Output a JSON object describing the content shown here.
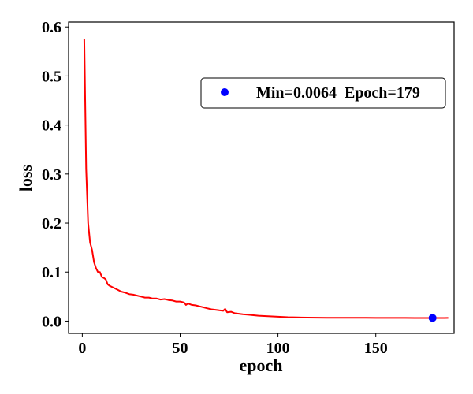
{
  "chart_data": {
    "type": "line",
    "xlabel": "epoch",
    "ylabel": "loss",
    "xlim": [
      -7,
      190
    ],
    "ylim": [
      -0.025,
      0.61
    ],
    "xticks": [
      0,
      50,
      100,
      150
    ],
    "yticks": [
      0.0,
      0.1,
      0.2,
      0.3,
      0.4,
      0.5,
      0.6
    ],
    "xtick_labels": [
      "0",
      "50",
      "100",
      "150"
    ],
    "ytick_labels": [
      "0.0",
      "0.1",
      "0.2",
      "0.3",
      "0.4",
      "0.5",
      "0.6"
    ],
    "grid": false,
    "legend_position": "upper-right",
    "series": [
      {
        "color": "#ff0000",
        "x": [
          1,
          2,
          3,
          4,
          5,
          6,
          7,
          8,
          9,
          10,
          11,
          12,
          13,
          14,
          15,
          16,
          17,
          18,
          19,
          20,
          22,
          24,
          26,
          28,
          30,
          32,
          34,
          36,
          38,
          40,
          42,
          44,
          46,
          48,
          50,
          52,
          53,
          54,
          56,
          58,
          60,
          62,
          64,
          66,
          68,
          70,
          72,
          73,
          74,
          76,
          78,
          80,
          82,
          85,
          90,
          95,
          100,
          105,
          110,
          115,
          120,
          125,
          130,
          135,
          140,
          145,
          150,
          155,
          160,
          165,
          170,
          175,
          180,
          185,
          187
        ],
        "y": [
          0.575,
          0.31,
          0.2,
          0.16,
          0.145,
          0.12,
          0.108,
          0.1,
          0.1,
          0.09,
          0.088,
          0.085,
          0.075,
          0.072,
          0.07,
          0.068,
          0.066,
          0.064,
          0.062,
          0.06,
          0.058,
          0.055,
          0.054,
          0.052,
          0.05,
          0.048,
          0.048,
          0.046,
          0.046,
          0.044,
          0.045,
          0.043,
          0.042,
          0.04,
          0.04,
          0.038,
          0.033,
          0.036,
          0.033,
          0.032,
          0.03,
          0.028,
          0.026,
          0.024,
          0.023,
          0.022,
          0.021,
          0.025,
          0.018,
          0.019,
          0.016,
          0.015,
          0.014,
          0.013,
          0.011,
          0.01,
          0.009,
          0.008,
          0.0075,
          0.0072,
          0.007,
          0.0069,
          0.0068,
          0.0067,
          0.0066,
          0.0066,
          0.0065,
          0.0065,
          0.0065,
          0.0065,
          0.0064,
          0.0064,
          0.0064,
          0.0064,
          0.0065
        ]
      }
    ],
    "marker": {
      "x": 179,
      "y": 0.0064,
      "color": "#0000ff"
    },
    "legend": {
      "label": "Min=0.0064  Epoch=179",
      "marker_color": "#0000ff"
    }
  }
}
